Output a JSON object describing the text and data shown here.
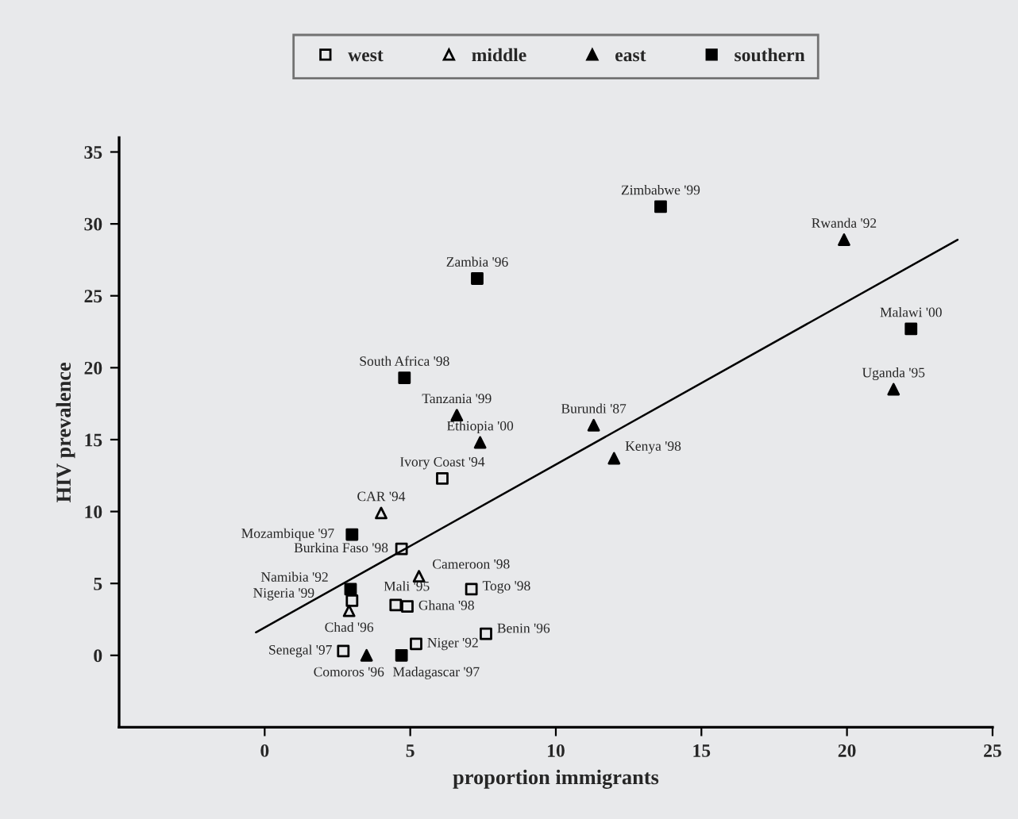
{
  "chart_data": {
    "type": "scatter",
    "xlabel": "proportion immigrants",
    "ylabel": "HIV prevalence",
    "xlim": [
      -5,
      25
    ],
    "ylim": [
      -5,
      36
    ],
    "xticks": [
      0,
      5,
      10,
      15,
      20,
      25
    ],
    "yticks": [
      0,
      5,
      10,
      15,
      20,
      25,
      30,
      35
    ],
    "grid": false,
    "legend": "top",
    "series": [
      {
        "name": "west",
        "color": "#000000",
        "marker": "square-open",
        "x": [
          6.1,
          4.7,
          3.0,
          4.5,
          4.9,
          7.1,
          7.6,
          5.2,
          2.7
        ],
        "values": [
          12.3,
          7.4,
          3.8,
          3.5,
          3.4,
          4.6,
          1.5,
          0.8,
          0.3
        ]
      },
      {
        "name": "middle",
        "color": "#000000",
        "marker": "triangle-open",
        "x": [
          4.0,
          5.3,
          2.9
        ],
        "values": [
          9.9,
          5.5,
          3.1
        ]
      },
      {
        "name": "east",
        "color": "#000000",
        "marker": "triangle",
        "x": [
          19.9,
          21.6,
          11.3,
          12.0,
          6.6,
          7.4,
          3.5
        ],
        "values": [
          28.9,
          18.5,
          16.0,
          13.7,
          16.7,
          14.8,
          0.0
        ]
      },
      {
        "name": "southern",
        "color": "#000000",
        "marker": "square",
        "x": [
          13.6,
          22.2,
          7.3,
          4.8,
          3.0,
          2.95,
          4.7
        ],
        "values": [
          31.2,
          22.7,
          26.2,
          19.3,
          8.4,
          4.6,
          0.0
        ]
      },
      {
        "type": "line",
        "color": "#000000",
        "marker": "none",
        "x": [
          -0.3,
          23.8
        ],
        "values": [
          1.6,
          28.9
        ]
      }
    ],
    "annotations": [
      {
        "text": "Zimbabwe '99",
        "x": 13.6,
        "y": 31.2
      },
      {
        "text": "Rwanda '92",
        "x": 19.9,
        "y": 28.9
      },
      {
        "text": "Malawi '00",
        "x": 22.2,
        "y": 22.7
      },
      {
        "text": "Uganda '95",
        "x": 21.6,
        "y": 18.5
      },
      {
        "text": "Burundi '87",
        "x": 11.3,
        "y": 16.0
      },
      {
        "text": "Kenya '98",
        "x": 12.0,
        "y": 13.7
      },
      {
        "text": "Zambia '96",
        "x": 7.3,
        "y": 26.2
      },
      {
        "text": "South Africa '98",
        "x": 4.8,
        "y": 19.3
      },
      {
        "text": "Tanzania '99",
        "x": 6.6,
        "y": 16.7
      },
      {
        "text": "Ethiopia '00",
        "x": 7.4,
        "y": 14.8
      },
      {
        "text": "Ivory Coast '94",
        "x": 6.1,
        "y": 12.3
      },
      {
        "text": "CAR '94",
        "x": 4.0,
        "y": 9.9
      },
      {
        "text": "Mozambique '97",
        "x": 3.0,
        "y": 8.4
      },
      {
        "text": "Burkina Faso '98",
        "x": 4.7,
        "y": 7.4
      },
      {
        "text": "Cameroon '98",
        "x": 5.3,
        "y": 5.5
      },
      {
        "text": "Namibia '92",
        "x": 2.95,
        "y": 4.6
      },
      {
        "text": "Nigeria '99",
        "x": 3.0,
        "y": 3.8
      },
      {
        "text": "Chad '96",
        "x": 2.9,
        "y": 3.1
      },
      {
        "text": "Mali '95",
        "x": 4.5,
        "y": 3.5
      },
      {
        "text": "Ghana '98",
        "x": 4.9,
        "y": 3.4
      },
      {
        "text": "Togo '98",
        "x": 7.1,
        "y": 4.6
      },
      {
        "text": "Benin '96",
        "x": 7.6,
        "y": 1.5
      },
      {
        "text": "Niger '92",
        "x": 5.2,
        "y": 0.8
      },
      {
        "text": "Senegal '97",
        "x": 2.7,
        "y": 0.3
      },
      {
        "text": "Comoros '96",
        "x": 3.5,
        "y": 0.0
      },
      {
        "text": "Madagascar '97",
        "x": 4.7,
        "y": 0.0
      }
    ]
  }
}
